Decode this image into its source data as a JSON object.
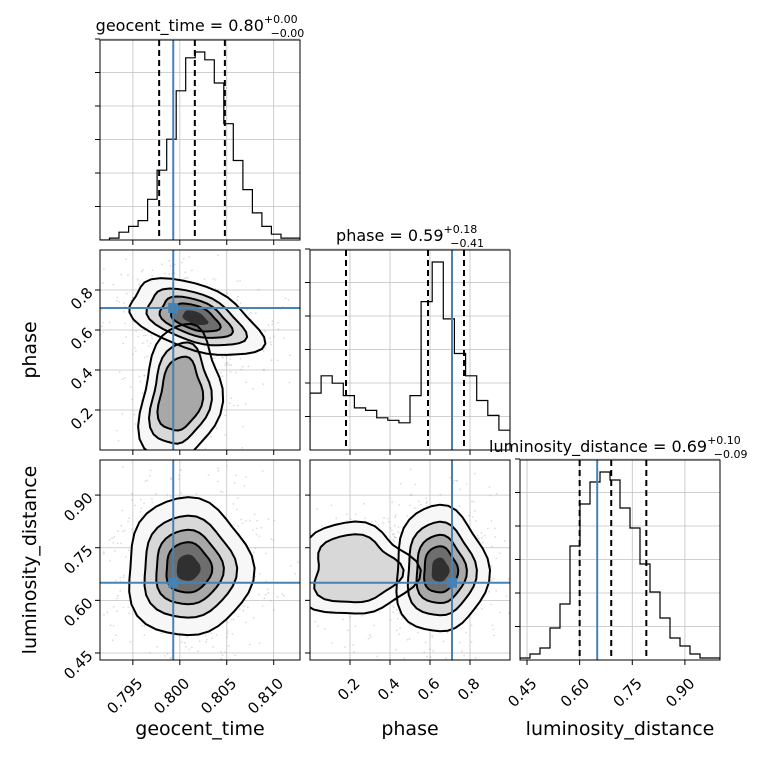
{
  "chart_data": {
    "type": "corner",
    "parameters": [
      {
        "name": "geocent_time",
        "median": "0.80",
        "plus": "+0.00",
        "minus": "−0.00",
        "range": [
          0.7915,
          0.8128
        ],
        "ticks": [
          0.795,
          0.8,
          0.805,
          0.81
        ],
        "tick_labels": [
          "0.795",
          "0.800",
          "0.805",
          "0.810"
        ]
      },
      {
        "name": "phase",
        "median": "0.59",
        "plus": "+0.18",
        "minus": "−0.41",
        "range": [
          0.0,
          1.0
        ],
        "ticks": [
          0.2,
          0.4,
          0.6,
          0.8
        ],
        "tick_labels": [
          "0.2",
          "0.4",
          "0.6",
          "0.8"
        ]
      },
      {
        "name": "luminosity_distance",
        "median": "0.69",
        "plus": "+0.10",
        "minus": "−0.09",
        "range": [
          0.43,
          1.0
        ],
        "ticks": [
          0.45,
          0.6,
          0.75,
          0.9
        ],
        "tick_labels": [
          "0.45",
          "0.60",
          "0.75",
          "0.90"
        ]
      }
    ],
    "truths": {
      "geocent_time": 0.7993,
      "phase": 0.71,
      "luminosity_distance": 0.65
    },
    "quantiles": {
      "geocent_time": [
        0.7978,
        0.8016,
        0.8048
      ],
      "phase": [
        0.18,
        0.59,
        0.77
      ],
      "luminosity_distance": [
        0.6,
        0.69,
        0.79
      ]
    },
    "histograms": {
      "geocent_time": [
        0,
        1,
        4,
        7,
        10,
        21,
        36,
        52,
        77,
        94,
        97,
        93,
        81,
        60,
        41,
        26,
        14,
        7,
        3,
        1,
        1
      ],
      "phase": [
        23,
        30,
        27,
        22,
        17,
        16,
        13,
        12,
        11,
        22,
        60,
        76,
        53,
        39,
        30,
        20,
        14,
        8
      ],
      "luminosity_distance": [
        1,
        3,
        6,
        16,
        28,
        57,
        78,
        89,
        94,
        90,
        76,
        66,
        48,
        34,
        21,
        11,
        7,
        3,
        1,
        1
      ]
    },
    "grid": true
  }
}
